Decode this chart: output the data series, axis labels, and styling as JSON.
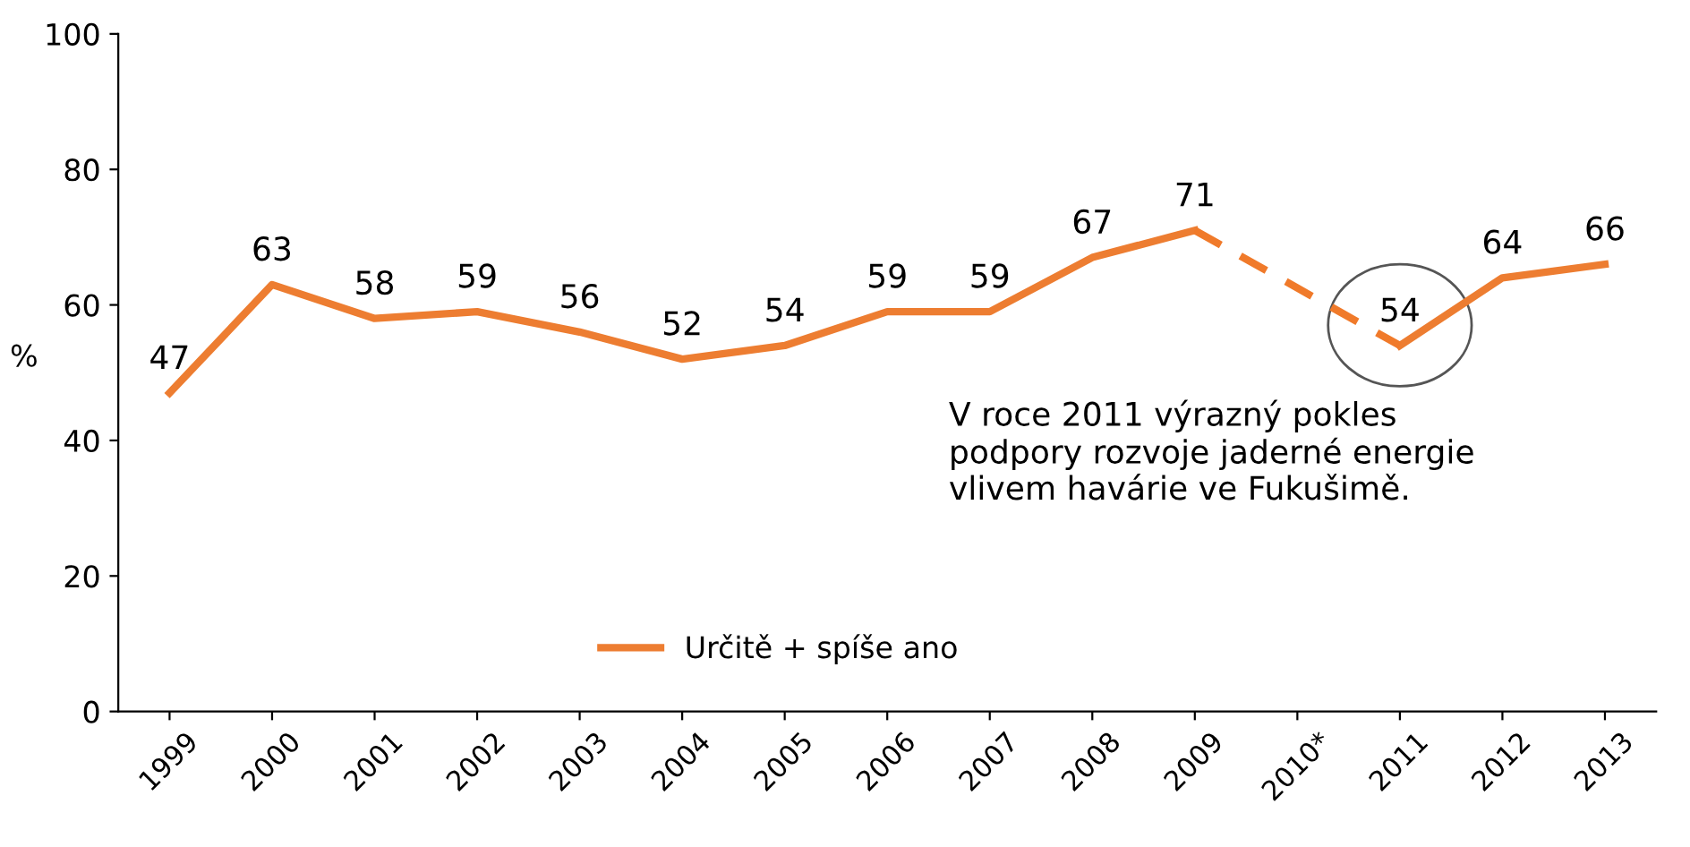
{
  "chart_data": {
    "type": "line",
    "categories": [
      "1999",
      "2000",
      "2001",
      "2002",
      "2003",
      "2004",
      "2005",
      "2006",
      "2007",
      "2008",
      "2009",
      "2010*",
      "2011",
      "2012",
      "2013"
    ],
    "series": [
      {
        "name": "Určitě + spíše ano",
        "color": "#ed7d31",
        "values": [
          47,
          63,
          58,
          59,
          56,
          52,
          54,
          59,
          59,
          67,
          71,
          null,
          54,
          64,
          66
        ]
      },
      {
        "color": "#f07a2a",
        "line_style": "dashed",
        "values": [
          null,
          null,
          null,
          null,
          null,
          null,
          null,
          null,
          null,
          null,
          71,
          62.5,
          54,
          null,
          null
        ],
        "value_labels": [
          null,
          null,
          null,
          null,
          null,
          null,
          null,
          null,
          null,
          null,
          null,
          null,
          null,
          null,
          null
        ]
      }
    ],
    "ylabel": "%",
    "ylim": [
      0,
      100
    ],
    "yticks": [
      0,
      20,
      40,
      60,
      80,
      100
    ],
    "annotations": [
      {
        "text": "V roce 2011 výrazný pokles\npodpory rozvoje jaderné energie\nvlivem havárie ve Fukušimě.",
        "x": "2011",
        "y": 54
      }
    ],
    "data_labels": true,
    "legend": "bottom",
    "grid": false,
    "marker": "none"
  }
}
